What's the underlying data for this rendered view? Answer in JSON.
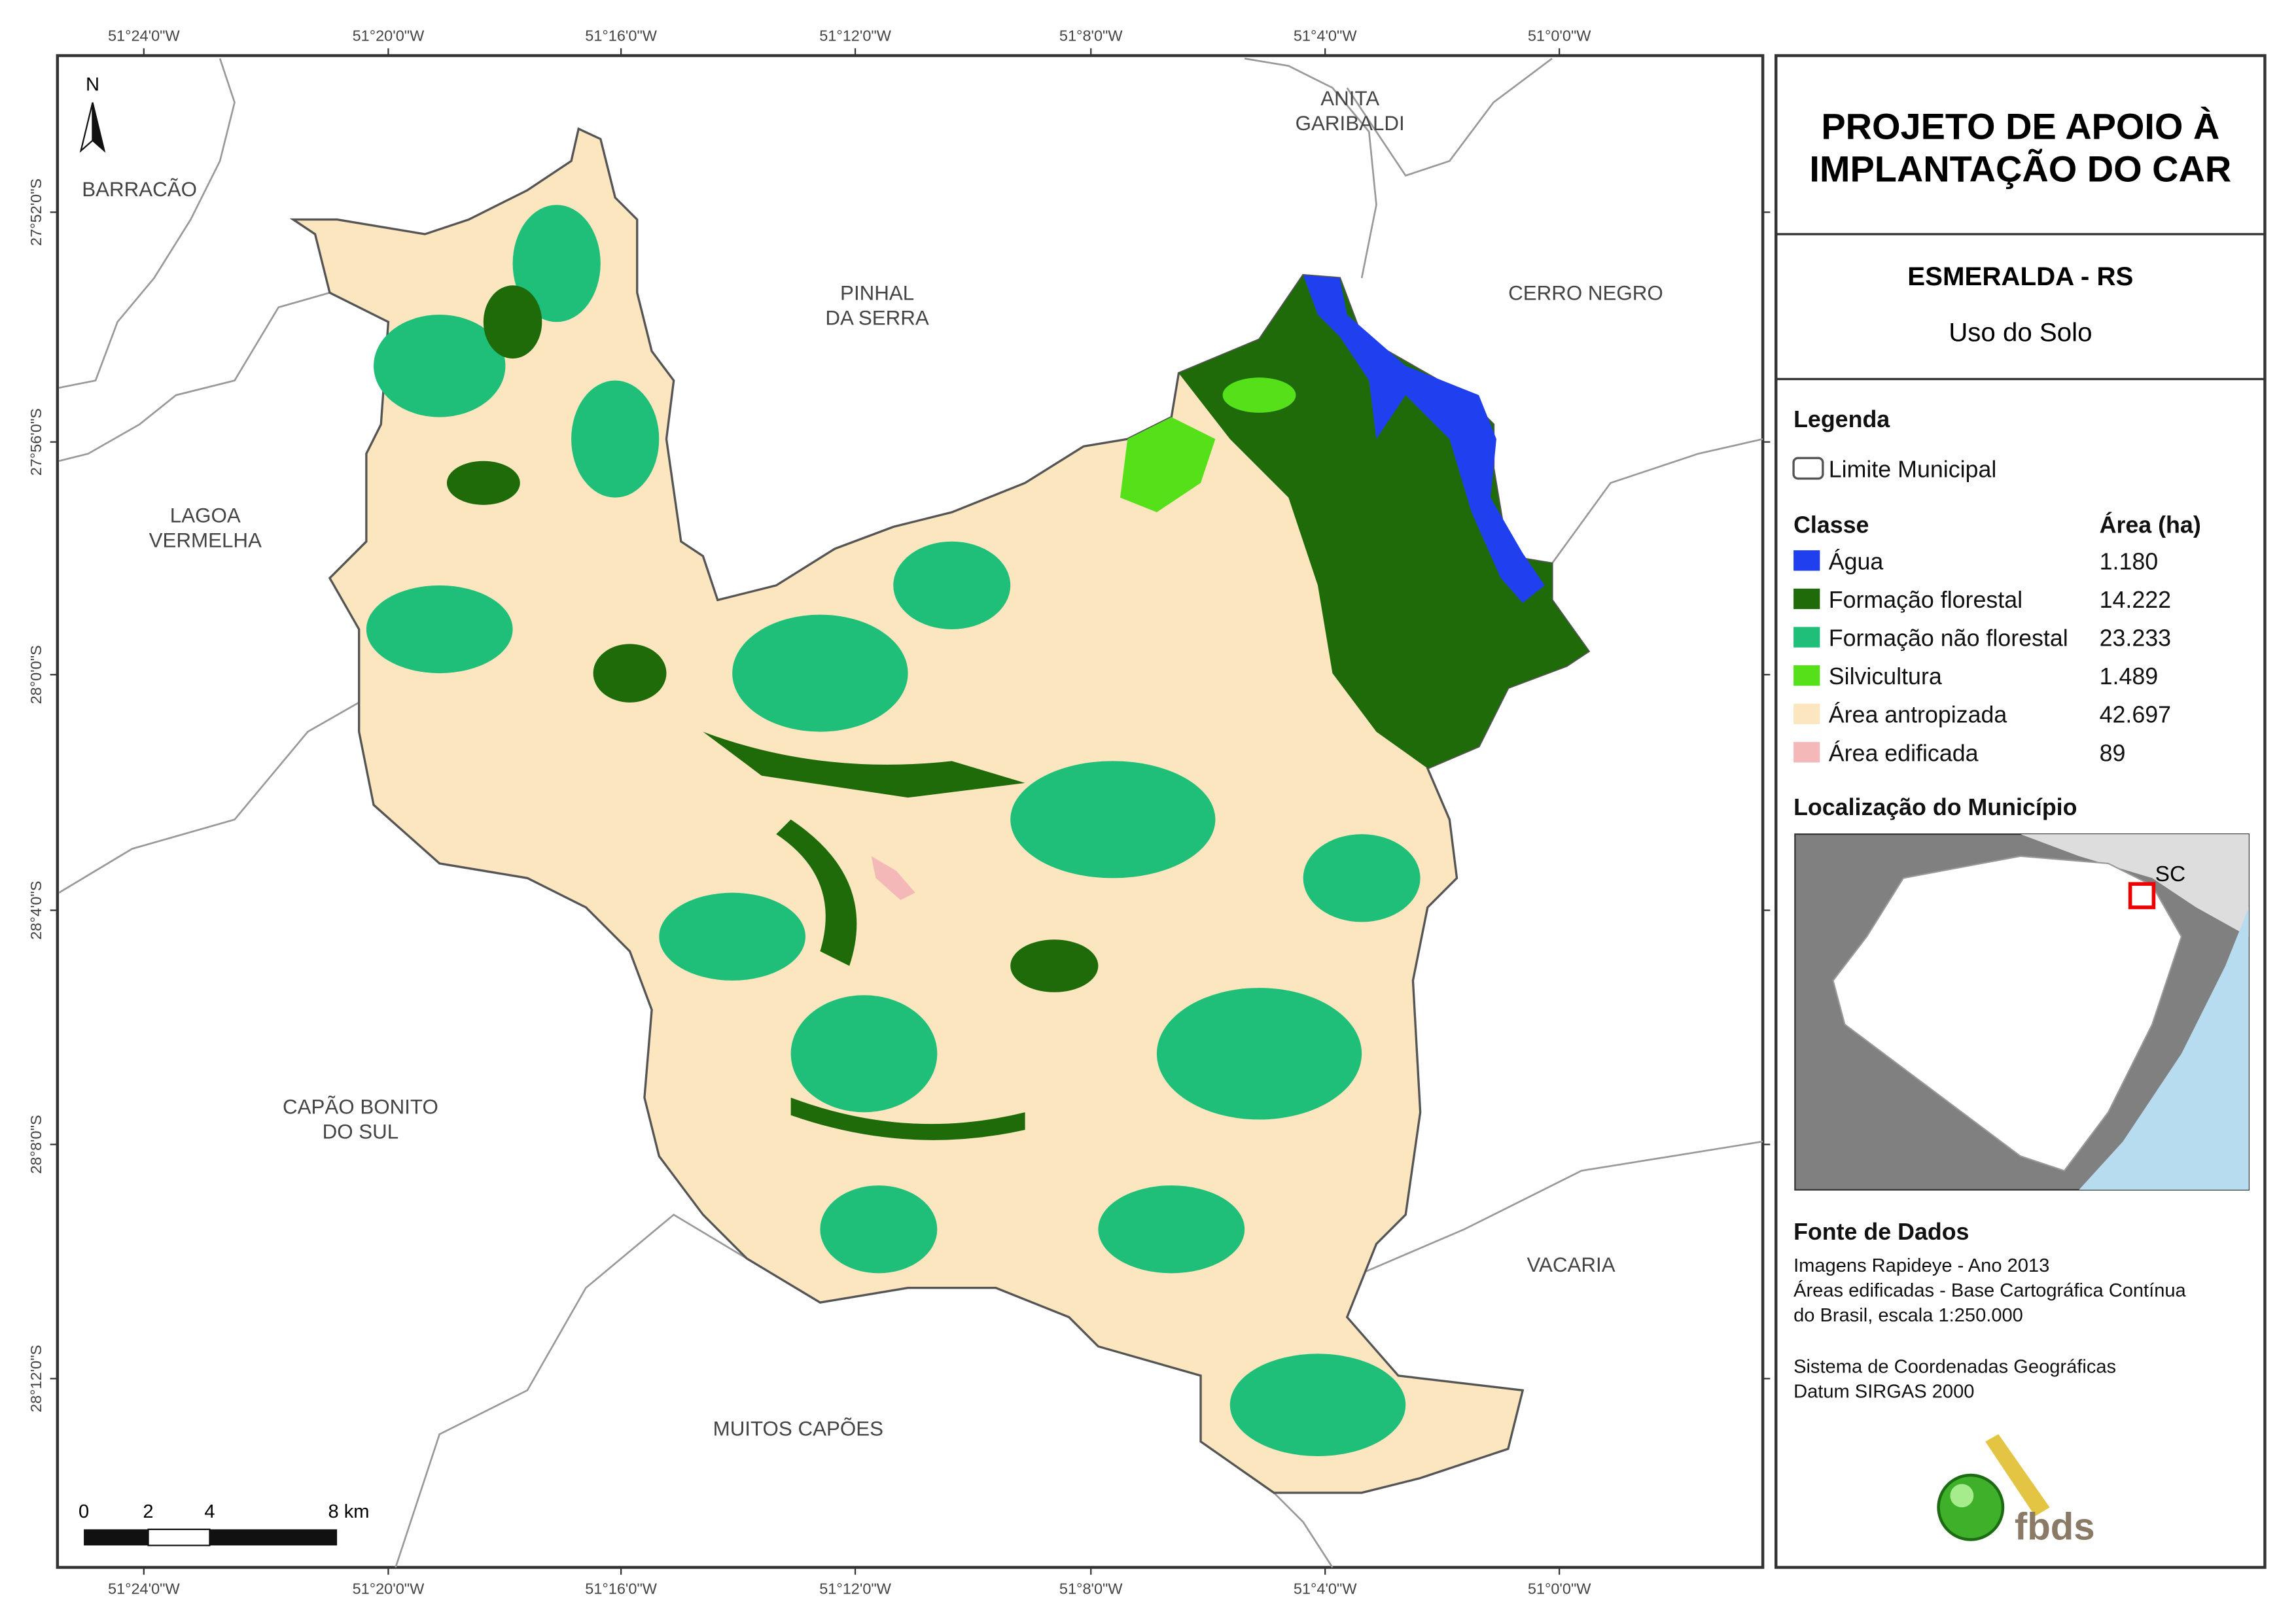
{
  "map": {
    "title": [
      "PROJETO DE APOIO À",
      "IMPLANTAÇÃO DO CAR"
    ],
    "municipality": "ESMERALDA - RS",
    "subtitle": "Uso do Solo",
    "longitude_labels": [
      "51°24'0\"W",
      "51°20'0\"W",
      "51°16'0\"W",
      "51°12'0\"W",
      "51°8'0\"W",
      "51°4'0\"W",
      "51°0'0\"W"
    ],
    "latitude_labels": [
      "27°52'0\"S",
      "27°56'0\"S",
      "28°0'0\"S",
      "28°4'0\"S",
      "28°8'0\"S",
      "28°12'0\"S"
    ],
    "neighbors": [
      [
        "BARRACÃO"
      ],
      [
        "PINHAL",
        "DA SERRA"
      ],
      [
        "ANITA",
        "GARIBALDI"
      ],
      [
        "CERRO NEGRO"
      ],
      [
        "LAGOA",
        "VERMELHA"
      ],
      [
        "CAPÃO BONITO",
        "DO SUL"
      ],
      [
        "VACARIA"
      ],
      [
        "MUITOS CAPÕES"
      ]
    ],
    "north": "N",
    "scale": [
      "0",
      "2",
      "4",
      "8 km"
    ]
  },
  "legend": {
    "title": "Legenda",
    "boundary": "Limite Municipal",
    "class_header": "Classe",
    "area_header": "Área (ha)",
    "classes": [
      {
        "name": "Água",
        "area": "1.180",
        "color": "#2040f0"
      },
      {
        "name": "Formação florestal",
        "area": "14.222",
        "color": "#1f6b0a"
      },
      {
        "name": "Formação não florestal",
        "area": "23.233",
        "color": "#1fbf7a"
      },
      {
        "name": "Silvicultura",
        "area": "1.489",
        "color": "#55e01a"
      },
      {
        "name": "Área antropizada",
        "area": "42.697",
        "color": "#fbe6c0"
      },
      {
        "name": "Área edificada",
        "area": "89",
        "color": "#f5b8b8"
      }
    ]
  },
  "location": {
    "title": "Localização do Município",
    "state": "SC"
  },
  "sources": {
    "title": "Fonte de Dados",
    "lines": [
      "Imagens Rapideye - Ano 2013",
      "Áreas edificadas - Base Cartográfica Contínua",
      "do Brasil, escala 1:250.000",
      "Sistema de Coordenadas Geográficas",
      "Datum SIRGAS 2000"
    ]
  },
  "logo": "fbds"
}
